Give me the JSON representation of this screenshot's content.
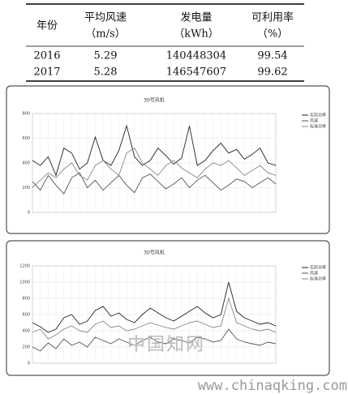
{
  "table": {
    "header": [
      [
        "年份"
      ],
      [
        "平均风速",
        "（m/s）"
      ],
      [
        "发电量",
        "（kWh）"
      ],
      [
        "可利用率",
        "（%）"
      ]
    ],
    "rows": [
      [
        "2016",
        "5.29",
        "140448304",
        "99.54"
      ],
      [
        "2017",
        "5.28",
        "146547607",
        "99.62"
      ]
    ]
  },
  "charts": [
    {
      "type": "line",
      "title": "30号风机",
      "ylim": [
        0,
        800
      ],
      "yticks": [
        0,
        200,
        400,
        600,
        800
      ],
      "series": [
        {
          "name": "实际功率",
          "color": "#222",
          "values": [
            420,
            380,
            450,
            300,
            520,
            480,
            350,
            400,
            610,
            420,
            380,
            500,
            700,
            450,
            380,
            420,
            520,
            460,
            390,
            440,
            700,
            380,
            420,
            500,
            560,
            480,
            510,
            430,
            470,
            520,
            400,
            380
          ]
        },
        {
          "name": "风速",
          "color": "#555",
          "values": [
            250,
            180,
            300,
            220,
            150,
            280,
            320,
            200,
            260,
            180,
            240,
            300,
            220,
            160,
            280,
            310,
            250,
            190,
            230,
            280,
            200,
            260,
            300,
            240,
            180,
            220,
            270,
            250,
            200,
            240,
            280,
            230
          ]
        },
        {
          "name": "标准功率",
          "color": "#888",
          "values": [
            200,
            260,
            320,
            280,
            350,
            400,
            300,
            260,
            380,
            420,
            350,
            300,
            480,
            520,
            400,
            350,
            300,
            380,
            420,
            360,
            320,
            280,
            350,
            400,
            380,
            420,
            360,
            300,
            340,
            380,
            320,
            300
          ]
        }
      ]
    },
    {
      "type": "line",
      "title": "30号风机",
      "ylim": [
        0,
        1200
      ],
      "yticks": [
        0,
        200,
        400,
        600,
        800,
        1000,
        1200
      ],
      "series": [
        {
          "name": "实际功率",
          "color": "#222",
          "values": [
            500,
            450,
            380,
            420,
            560,
            600,
            480,
            520,
            650,
            700,
            580,
            620,
            540,
            500,
            600,
            680,
            620,
            560,
            520,
            580,
            640,
            700,
            620,
            560,
            600,
            1000,
            640,
            560,
            520,
            480,
            500,
            460
          ]
        },
        {
          "name": "风速",
          "color": "#555",
          "values": [
            200,
            150,
            250,
            180,
            300,
            220,
            260,
            200,
            320,
            280,
            240,
            300,
            260,
            220,
            280,
            320,
            260,
            240,
            300,
            280,
            250,
            320,
            300,
            260,
            280,
            420,
            300,
            260,
            240,
            220,
            260,
            240
          ]
        },
        {
          "name": "标准功率",
          "color": "#888",
          "values": [
            380,
            420,
            300,
            350,
            420,
            460,
            400,
            380,
            480,
            520,
            440,
            460,
            400,
            420,
            460,
            500,
            470,
            440,
            420,
            460,
            500,
            520,
            480,
            440,
            460,
            800,
            500,
            460,
            420,
            400,
            420,
            380
          ]
        }
      ]
    }
  ],
  "watermark": {
    "text": "中国知网",
    "url": "www.chinaqking.com"
  }
}
